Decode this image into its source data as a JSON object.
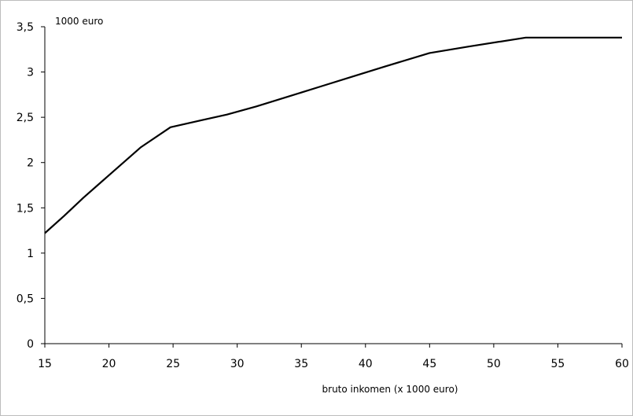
{
  "chart_data": {
    "type": "line",
    "title": "",
    "ylabel": "1000 euro",
    "xlabel": "bruto inkomen (x 1000 euro)",
    "xlim": [
      15,
      60
    ],
    "ylim": [
      0,
      3.5
    ],
    "x_ticks": [
      15,
      20,
      25,
      30,
      35,
      40,
      45,
      50,
      55,
      60
    ],
    "x_tick_labels": [
      "15",
      "20",
      "25",
      "30",
      "35",
      "40",
      "45",
      "50",
      "55",
      "60"
    ],
    "y_ticks": [
      0,
      0.5,
      1,
      1.5,
      2,
      2.5,
      3,
      3.5
    ],
    "y_tick_labels": [
      "0",
      "0,5",
      "1",
      "1,5",
      "2",
      "2,5",
      "3",
      "3,5"
    ],
    "grid": false,
    "legend": "none",
    "line_color": "#000000",
    "series": [
      {
        "x": [
          15,
          16.5,
          18,
          20,
          22.5,
          24.8,
          27,
          29.2,
          31.5,
          34,
          36.5,
          39,
          41.5,
          45,
          48,
          52.5,
          55,
          60
        ],
        "y": [
          1.22,
          1.41,
          1.61,
          1.86,
          2.17,
          2.39,
          2.46,
          2.53,
          2.62,
          2.73,
          2.84,
          2.95,
          3.06,
          3.21,
          3.28,
          3.38,
          3.38,
          3.38
        ]
      }
    ]
  }
}
